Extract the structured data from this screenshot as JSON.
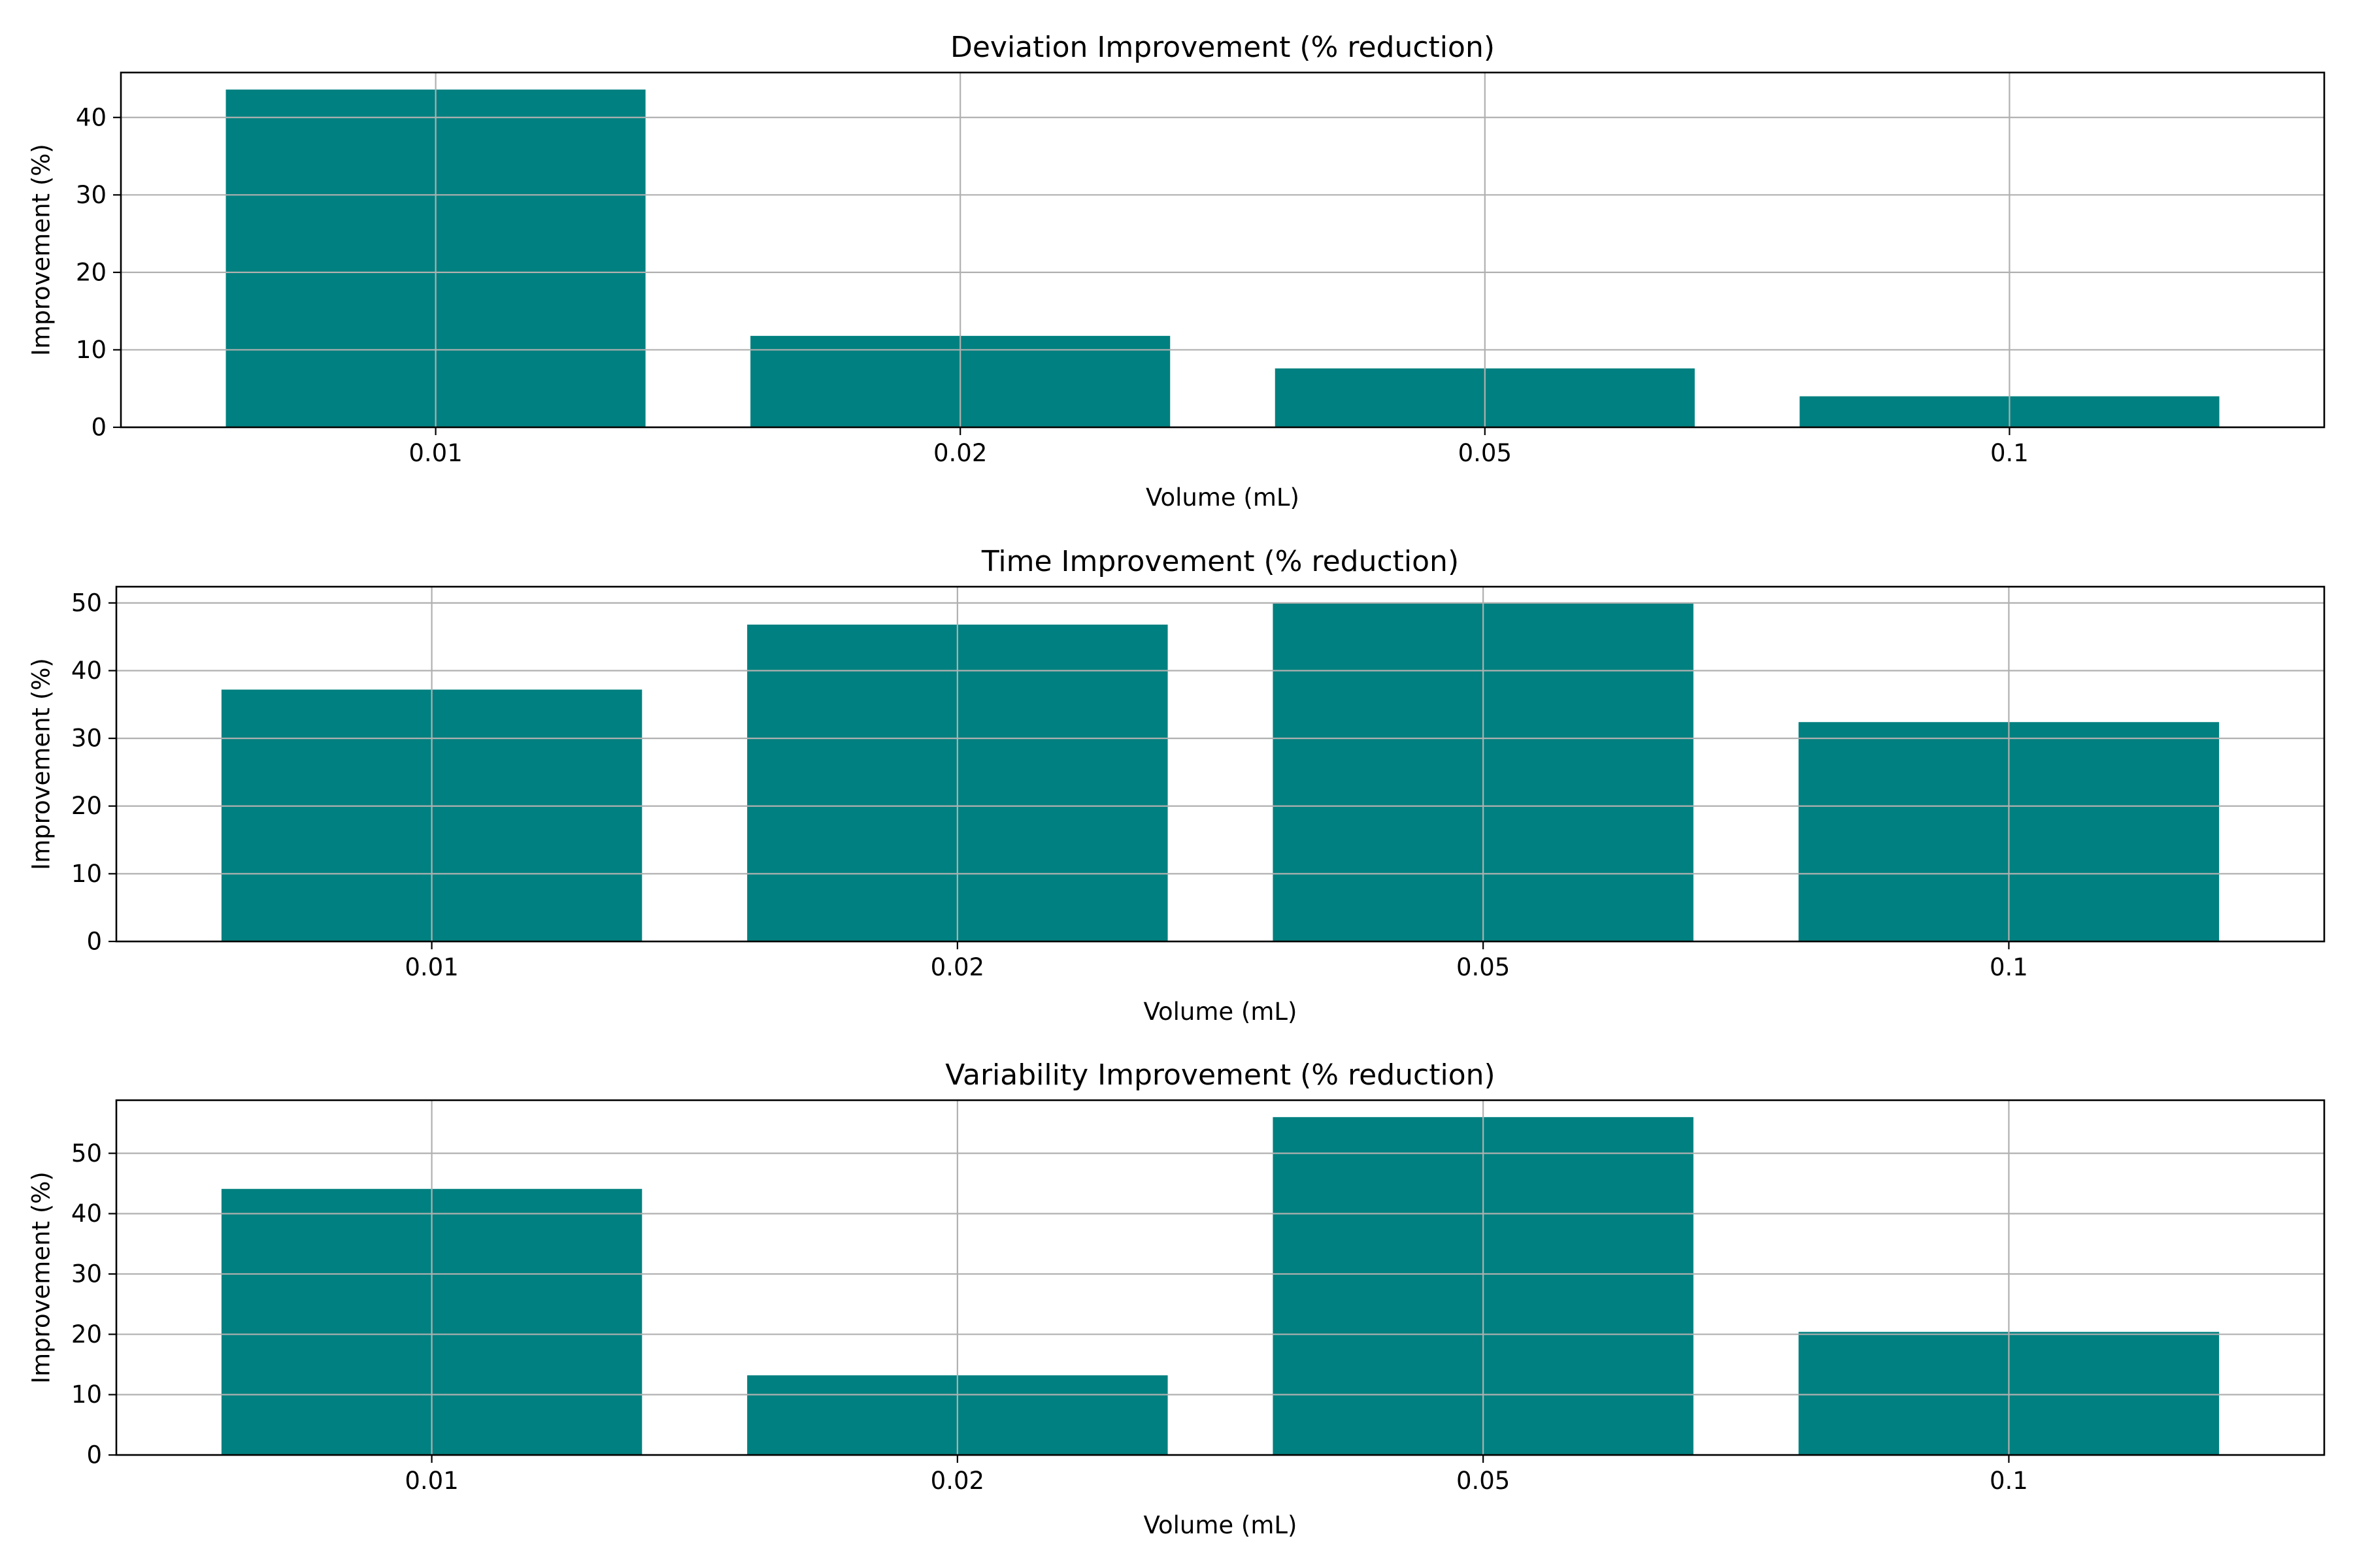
{
  "chart_data": [
    {
      "type": "bar",
      "title": "Deviation Improvement (% reduction)",
      "xlabel": "Volume (mL)",
      "ylabel": "Improvement (%)",
      "categories": [
        "0.01",
        "0.02",
        "0.05",
        "0.1"
      ],
      "values": [
        43.6,
        11.8,
        7.6,
        4.0
      ],
      "ylim": [
        0,
        45.8
      ],
      "yticks": [
        "0",
        "10",
        "20",
        "30",
        "40"
      ],
      "grid": true,
      "bar_color": "#008080"
    },
    {
      "type": "bar",
      "title": "Time Improvement (% reduction)",
      "xlabel": "Volume (mL)",
      "ylabel": "Improvement (%)",
      "categories": [
        "0.01",
        "0.02",
        "0.05",
        "0.1"
      ],
      "values": [
        37.2,
        46.8,
        49.9,
        32.4
      ],
      "ylim": [
        0,
        52.4
      ],
      "yticks": [
        "0",
        "10",
        "20",
        "30",
        "40",
        "50"
      ],
      "grid": true,
      "bar_color": "#008080"
    },
    {
      "type": "bar",
      "title": "Variability Improvement (% reduction)",
      "xlabel": "Volume (mL)",
      "ylabel": "Improvement (%)",
      "categories": [
        "0.01",
        "0.02",
        "0.05",
        "0.1"
      ],
      "values": [
        44.1,
        13.2,
        56.0,
        20.4
      ],
      "ylim": [
        0,
        58.8
      ],
      "yticks": [
        "0",
        "10",
        "20",
        "30",
        "40",
        "50"
      ],
      "grid": true,
      "bar_color": "#008080"
    }
  ]
}
